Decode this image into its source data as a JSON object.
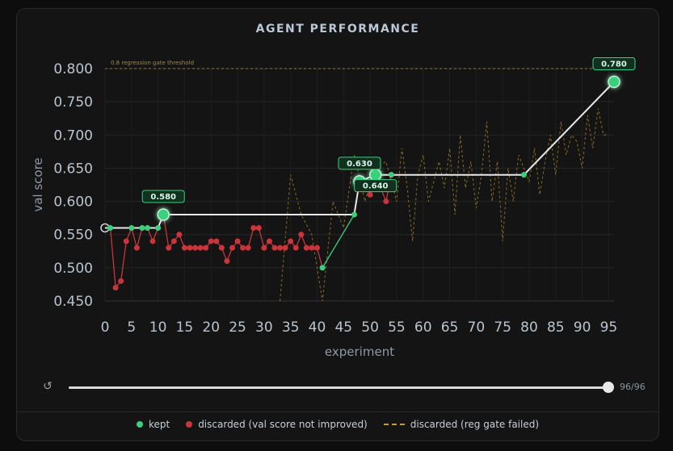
{
  "title": "AGENT PERFORMANCE",
  "colors": {
    "kept": "#3ecf7e",
    "discarded": "#c8363c",
    "gate_failed": "#b08a2a",
    "best_line": "#e8e8e8",
    "threshold": "#8a7a3a"
  },
  "chart_data": {
    "type": "line",
    "xlabel": "experiment",
    "ylabel": "val score",
    "xlim": [
      0,
      96
    ],
    "ylim": [
      0.45,
      0.8
    ],
    "xticks": [
      0,
      5,
      10,
      15,
      20,
      25,
      30,
      35,
      40,
      45,
      50,
      55,
      60,
      65,
      70,
      75,
      80,
      85,
      90,
      95
    ],
    "yticks": [
      0.45,
      0.5,
      0.55,
      0.6,
      0.65,
      0.7,
      0.75,
      0.8
    ],
    "ytick_labels": [
      "0.450",
      "0.500",
      "0.550",
      "0.600",
      "0.650",
      "0.700",
      "0.750",
      "0.800"
    ],
    "grid": true,
    "threshold": {
      "value": 0.8,
      "label": "0.8 regression gate threshold"
    },
    "series": [
      {
        "name": "kept",
        "x": [
          0,
          1,
          5,
          7,
          8,
          10,
          11,
          41,
          47,
          48,
          51,
          54,
          79,
          96
        ],
        "y": [
          0.56,
          0.56,
          0.56,
          0.56,
          0.56,
          0.56,
          0.58,
          0.5,
          0.58,
          0.63,
          0.64,
          0.64,
          0.64,
          0.78
        ]
      },
      {
        "name": "discarded (val score not improved)",
        "x": [
          2,
          3,
          4,
          6,
          9,
          12,
          13,
          14,
          15,
          16,
          17,
          18,
          19,
          20,
          21,
          22,
          23,
          24,
          25,
          26,
          27,
          28,
          29,
          30,
          31,
          32,
          33,
          34,
          35,
          36,
          37,
          38,
          39,
          40,
          50,
          53
        ],
        "y": [
          0.47,
          0.48,
          0.54,
          0.53,
          0.54,
          0.53,
          0.54,
          0.55,
          0.53,
          0.53,
          0.53,
          0.53,
          0.53,
          0.54,
          0.54,
          0.53,
          0.51,
          0.53,
          0.54,
          0.53,
          0.53,
          0.56,
          0.56,
          0.53,
          0.54,
          0.53,
          0.53,
          0.53,
          0.54,
          0.53,
          0.55,
          0.53,
          0.53,
          0.53,
          0.61,
          0.6
        ]
      },
      {
        "name": "discarded (reg gate failed)",
        "x": [
          33,
          35,
          37,
          39,
          41,
          43,
          45,
          47,
          49,
          51,
          53,
          55,
          56,
          57,
          58,
          59,
          60,
          61,
          62,
          63,
          64,
          65,
          66,
          67,
          68,
          69,
          70,
          71,
          72,
          73,
          74,
          75,
          76,
          77,
          78,
          80,
          81,
          82,
          83,
          84,
          85,
          86,
          87,
          88,
          89,
          90,
          91,
          92,
          93,
          94,
          95
        ],
        "y": [
          0.45,
          0.64,
          0.58,
          0.55,
          0.45,
          0.6,
          0.56,
          0.67,
          0.6,
          0.65,
          0.66,
          0.6,
          0.68,
          0.62,
          0.54,
          0.64,
          0.67,
          0.6,
          0.63,
          0.66,
          0.62,
          0.68,
          0.58,
          0.7,
          0.62,
          0.66,
          0.59,
          0.64,
          0.72,
          0.6,
          0.66,
          0.54,
          0.65,
          0.6,
          0.67,
          0.63,
          0.68,
          0.61,
          0.66,
          0.7,
          0.64,
          0.72,
          0.67,
          0.7,
          0.69,
          0.65,
          0.73,
          0.68,
          0.74,
          0.7,
          0.7
        ]
      }
    ],
    "best_line": {
      "x": [
        0,
        10,
        11,
        47,
        48,
        51,
        79,
        96
      ],
      "y": [
        0.56,
        0.56,
        0.58,
        0.58,
        0.63,
        0.64,
        0.64,
        0.78
      ]
    },
    "annotations": [
      {
        "x": 11,
        "y": 0.58,
        "label": "0.580",
        "pos": "above"
      },
      {
        "x": 48,
        "y": 0.63,
        "label": "0.630",
        "pos": "above"
      },
      {
        "x": 51,
        "y": 0.64,
        "label": "0.640",
        "pos": "below"
      },
      {
        "x": 96,
        "y": 0.78,
        "label": "0.780",
        "pos": "above"
      }
    ]
  },
  "slider": {
    "value": 96,
    "max": 96,
    "count_label": "96/96",
    "reset_icon": "reset-icon"
  },
  "legend": [
    {
      "label": "kept",
      "marker": "dot",
      "color": "#3ecf7e"
    },
    {
      "label": "discarded (val score not improved)",
      "marker": "dot",
      "color": "#c8363c"
    },
    {
      "label": "discarded (reg gate failed)",
      "marker": "dash",
      "color": "#c99a2e"
    }
  ]
}
